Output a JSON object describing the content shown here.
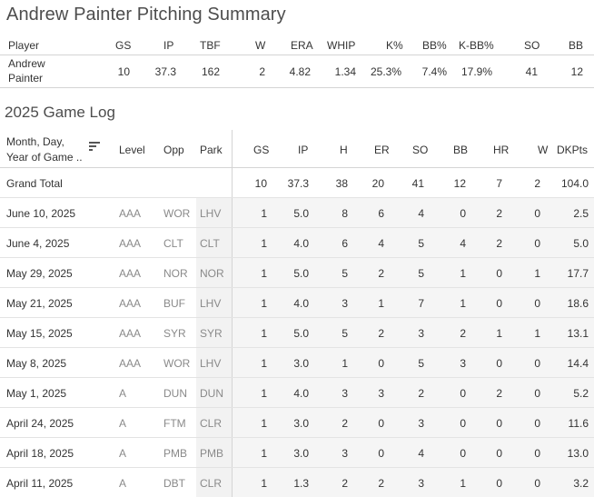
{
  "summary": {
    "title": "Andrew Painter Pitching Summary",
    "headers": [
      "Player",
      "GS",
      "IP",
      "TBF",
      "W",
      "ERA",
      "WHIP",
      "K%",
      "BB%",
      "K-BB%",
      "SO",
      "BB"
    ],
    "player_line1": "Andrew",
    "player_line2": "Painter",
    "values": [
      "10",
      "37.3",
      "162",
      "2",
      "4.82",
      "1.34",
      "25.3%",
      "7.4%",
      "17.9%",
      "41",
      "12"
    ]
  },
  "game_log": {
    "title": "2025 Game Log",
    "date_header_line1": "Month, Day,",
    "date_header_line2": "Year of Game ..",
    "sort_icon": "sort-descending-icon",
    "headers": [
      "Level",
      "Opp",
      "Park",
      "GS",
      "IP",
      "H",
      "ER",
      "SO",
      "BB",
      "HR",
      "W",
      "DKPts"
    ],
    "grand_total": {
      "label": "Grand Total",
      "values": [
        "10",
        "37.3",
        "38",
        "20",
        "41",
        "12",
        "7",
        "2",
        "104.0"
      ]
    },
    "rows": [
      {
        "date": "June 10, 2025",
        "level": "AAA",
        "opp": "WOR",
        "park": "LHV",
        "values": [
          "1",
          "5.0",
          "8",
          "6",
          "4",
          "0",
          "2",
          "0",
          "2.5"
        ]
      },
      {
        "date": "June 4, 2025",
        "level": "AAA",
        "opp": "CLT",
        "park": "CLT",
        "values": [
          "1",
          "4.0",
          "6",
          "4",
          "5",
          "4",
          "2",
          "0",
          "5.0"
        ]
      },
      {
        "date": "May 29, 2025",
        "level": "AAA",
        "opp": "NOR",
        "park": "NOR",
        "values": [
          "1",
          "5.0",
          "5",
          "2",
          "5",
          "1",
          "0",
          "1",
          "17.7"
        ]
      },
      {
        "date": "May 21, 2025",
        "level": "AAA",
        "opp": "BUF",
        "park": "LHV",
        "values": [
          "1",
          "4.0",
          "3",
          "1",
          "7",
          "1",
          "0",
          "0",
          "18.6"
        ]
      },
      {
        "date": "May 15, 2025",
        "level": "AAA",
        "opp": "SYR",
        "park": "SYR",
        "values": [
          "1",
          "5.0",
          "5",
          "2",
          "3",
          "2",
          "1",
          "1",
          "13.1"
        ]
      },
      {
        "date": "May 8, 2025",
        "level": "AAA",
        "opp": "WOR",
        "park": "LHV",
        "values": [
          "1",
          "3.0",
          "1",
          "0",
          "5",
          "3",
          "0",
          "0",
          "14.4"
        ]
      },
      {
        "date": "May 1, 2025",
        "level": "A",
        "opp": "DUN",
        "park": "DUN",
        "values": [
          "1",
          "4.0",
          "3",
          "3",
          "2",
          "0",
          "2",
          "0",
          "5.2"
        ]
      },
      {
        "date": "April 24, 2025",
        "level": "A",
        "opp": "FTM",
        "park": "CLR",
        "values": [
          "1",
          "3.0",
          "2",
          "0",
          "3",
          "0",
          "0",
          "0",
          "11.6"
        ]
      },
      {
        "date": "April 18, 2025",
        "level": "A",
        "opp": "PMB",
        "park": "PMB",
        "values": [
          "1",
          "3.0",
          "3",
          "0",
          "4",
          "0",
          "0",
          "0",
          "13.0"
        ]
      },
      {
        "date": "April 11, 2025",
        "level": "A",
        "opp": "DBT",
        "park": "CLR",
        "values": [
          "1",
          "1.3",
          "2",
          "2",
          "3",
          "1",
          "0",
          "0",
          "3.2"
        ]
      }
    ]
  }
}
